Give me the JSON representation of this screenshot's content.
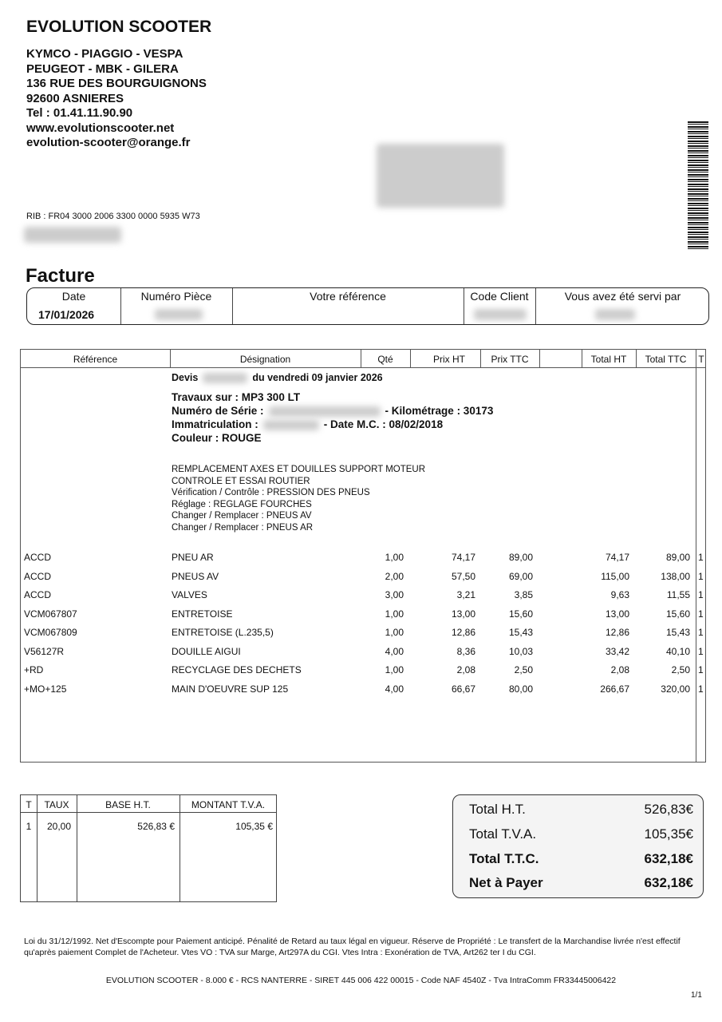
{
  "company": {
    "name": "EVOLUTION SCOOTER",
    "lines": [
      "KYMCO - PIAGGIO - VESPA",
      "PEUGEOT - MBK - GILERA",
      "136 RUE DES BOURGUIGNONS",
      "92600 ASNIERES",
      "Tel : 01.41.11.90.90",
      "www.evolutionscooter.net",
      "evolution-scooter@orange.fr"
    ],
    "rib": "RIB : FR04 3000 2006 3300 0000 5935 W73"
  },
  "invoice": {
    "title": "Facture",
    "headers": [
      "Date",
      "Numéro Pièce",
      "Votre référence",
      "Code Client",
      "Vous avez été servi par"
    ],
    "date": "17/01/2026"
  },
  "table": {
    "headers": [
      "Référence",
      "Désignation",
      "Qté",
      "Prix HT",
      "Prix TTC",
      "Total HT",
      "Total TTC",
      "T"
    ],
    "devis_prefix": "Devis",
    "devis_suffix": "du vendredi 09 janvier 2026",
    "travaux": "Travaux sur : MP3 300 LT",
    "serie": "Numéro de Série :",
    "km": "- Kilométrage : 30173",
    "immat": "Immatriculation :",
    "date_mc": "- Date M.C. : 08/02/2018",
    "couleur": "Couleur : ROUGE",
    "notes": [
      "REMPLACEMENT AXES ET DOUILLES SUPPORT MOTEUR",
      "CONTROLE ET ESSAI ROUTIER",
      "Vérification / Contrôle : PRESSION DES PNEUS",
      "Réglage : REGLAGE FOURCHES",
      "Changer / Remplacer : PNEUS AV",
      "Changer / Remplacer : PNEUS AR"
    ],
    "rows": [
      {
        "ref": "ACCD",
        "des": "PNEU AR",
        "qty": "1,00",
        "pht": "74,17",
        "pttc": "89,00",
        "tht": "74,17",
        "tttc": "89,00",
        "t": "1"
      },
      {
        "ref": "ACCD",
        "des": "PNEUS AV",
        "qty": "2,00",
        "pht": "57,50",
        "pttc": "69,00",
        "tht": "115,00",
        "tttc": "138,00",
        "t": "1"
      },
      {
        "ref": "ACCD",
        "des": "VALVES",
        "qty": "3,00",
        "pht": "3,21",
        "pttc": "3,85",
        "tht": "9,63",
        "tttc": "11,55",
        "t": "1"
      },
      {
        "ref": "VCM067807",
        "des": "ENTRETOISE",
        "qty": "1,00",
        "pht": "13,00",
        "pttc": "15,60",
        "tht": "13,00",
        "tttc": "15,60",
        "t": "1"
      },
      {
        "ref": "VCM067809",
        "des": "ENTRETOISE (L.235,5)",
        "qty": "1,00",
        "pht": "12,86",
        "pttc": "15,43",
        "tht": "12,86",
        "tttc": "15,43",
        "t": "1"
      },
      {
        "ref": "V56127R",
        "des": "DOUILLE AIGUI",
        "qty": "4,00",
        "pht": "8,36",
        "pttc": "10,03",
        "tht": "33,42",
        "tttc": "40,10",
        "t": "1"
      },
      {
        "ref": "+RD",
        "des": "RECYCLAGE DES DECHETS",
        "qty": "1,00",
        "pht": "2,08",
        "pttc": "2,50",
        "tht": "2,08",
        "tttc": "2,50",
        "t": "1"
      },
      {
        "ref": "+MO+125",
        "des": "MAIN D'OEUVRE SUP 125",
        "qty": "4,00",
        "pht": "66,67",
        "pttc": "80,00",
        "tht": "266,67",
        "tttc": "320,00",
        "t": "1"
      }
    ]
  },
  "tax": {
    "headers": [
      "T",
      "TAUX",
      "BASE H.T.",
      "MONTANT T.V.A."
    ],
    "row": {
      "t": "1",
      "taux": "20,00",
      "base": "526,83 €",
      "tva": "105,35 €"
    }
  },
  "totals": [
    {
      "label": "Total H.T.",
      "value": "526,83€"
    },
    {
      "label": "Total T.V.A.",
      "value": "105,35€"
    },
    {
      "label": "Total T.T.C.",
      "value": "632,18€"
    },
    {
      "label": "Net à Payer",
      "value": "632,18€"
    }
  ],
  "footer": {
    "legal": "Loi du 31/12/1992. Net d'Escompte pour Paiement anticipé. Pénalité de Retard au taux légal en vigueur. Réserve de Propriété : Le transfert de la Marchandise livrée n'est effectif qu'après paiement Complet de l'Acheteur. Vtes VO : TVA sur Marge, Art297A du CGI. Vtes Intra : Exonération de TVA, Art262 ter I du CGI.",
    "company": "EVOLUTION SCOOTER - 8.000 € - RCS NANTERRE - SIRET 445 006 422 00015 - Code NAF 4540Z - Tva IntraComm FR33445006422",
    "page": "1/1"
  }
}
